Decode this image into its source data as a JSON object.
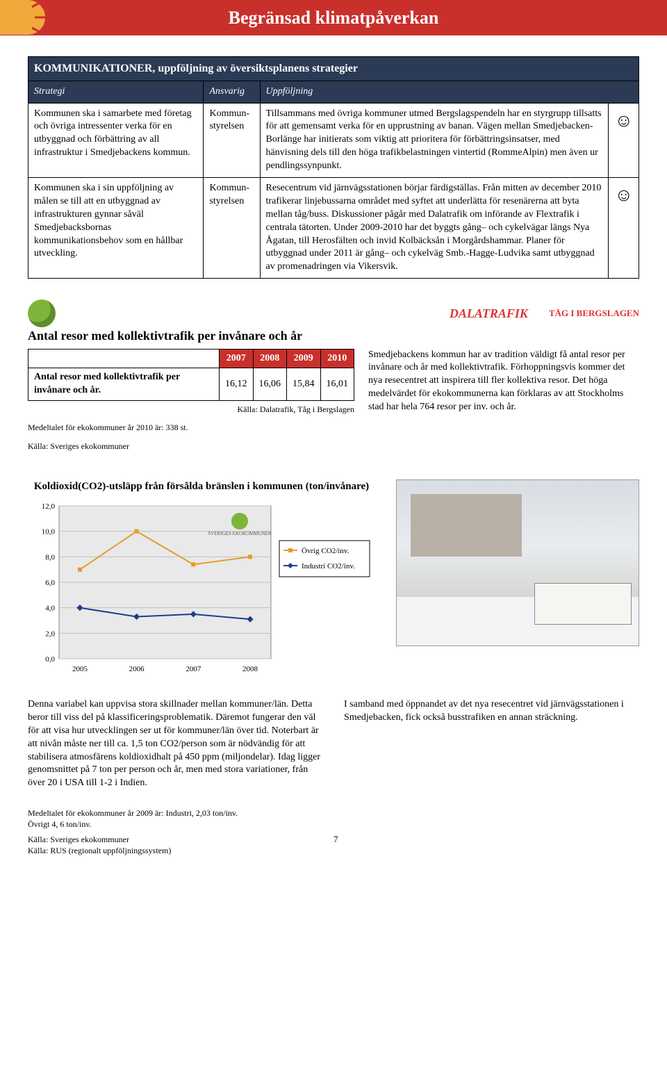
{
  "header": {
    "title": "Begränsad klimatpåverkan"
  },
  "strategies": {
    "main_title": "KOMMUNIKATIONER, uppföljning av översiktsplanens strategier",
    "col1": "Strategi",
    "col2": "Ansvarig",
    "col3": "Uppföljning",
    "rows": [
      {
        "strategy": "Kommunen ska i samarbete med företag och övriga intressenter verka för en utbyggnad och förbättring av all infrastruktur i Smedjebackens kommun.",
        "responsible": "Kommun-styrelsen",
        "followup": "Tillsammans med övriga kommuner utmed Bergslagspendeln har en styrgrupp tillsatts för att gemensamt verka för en upprustning av banan. Vägen mellan Smedjebacken-Borlänge har initierats som viktig att prioritera för förbättringsinsatser, med hänvisning dels till den höga trafikbelastningen vintertid (RommeAlpin) men även ur pendlingssynpunkt.",
        "smiley": "☺"
      },
      {
        "strategy": "Kommunen ska i sin uppföljning av målen se till att en utbyggnad av infrastrukturen gynnar såväl Smedjebacksbornas kommunikationsbehov som en hållbar utveckling.",
        "responsible": "Kommun-styrelsen",
        "followup": "Resecentrum vid järnvägsstationen börjar färdigställas. Från mitten av december 2010 trafikerar linjebussarna området med syftet att underlätta för resenärerna att byta mellan tåg/buss. Diskussioner pågår med Dalatrafik om införande av Flextrafik i centrala tätorten. Under 2009-2010 har det byggts gång– och cykelvägar längs Nya Ågatan, till Herosfälten och invid Kolbäcksån i Morgårdshammar. Planer för utbyggnad under 2011 är gång– och cykelväg Smb.-Hagge-Ludvika samt utbyggnad av promenadringen via Vikersvik.",
        "smiley": "☺"
      }
    ]
  },
  "kt_table": {
    "title": "Antal resor med kollektivtrafik per invånare och år",
    "years": [
      "2007",
      "2008",
      "2009",
      "2010"
    ],
    "row_label": "Antal resor med kollektivtrafik per invånare och år.",
    "values": [
      "16,12",
      "16,06",
      "15,84",
      "16,01"
    ],
    "source_right": "Källa: Dalatrafik, Tåg i Bergslagen",
    "note1": "Medeltalet för ekokommuner år 2010 är: 338 st.",
    "note2": "Källa: Sveriges ekokommuner"
  },
  "kt_right_text": "Smedjebackens kommun har av tradition väldigt få antal resor per invånare och år med kollektivtrafik. Förhoppningsvis kommer det nya resecentret att inspirera till fler kollektiva resor. Det höga medelvärdet för ekokommunerna kan förklaras av att Stockholms stad har hela 764 resor per inv. och år.",
  "logos": {
    "dalatrafik": "DALATRAFIK",
    "tib": "TÅG I BERGSLAGEN"
  },
  "co2_chart": {
    "title": "Koldioxid(CO2)-utsläpp från försålda bränslen i kommunen (ton/invånare)",
    "type": "line",
    "x": [
      2005,
      2006,
      2007,
      2008
    ],
    "x_labels": [
      "2005",
      "2006",
      "2007",
      "2008"
    ],
    "series": [
      {
        "name": "Övrig CO2/inv.",
        "color": "#e69b2b",
        "marker": "square",
        "values": [
          7.0,
          10.0,
          7.4,
          8.0
        ]
      },
      {
        "name": "Industri CO2/inv.",
        "color": "#1b3f8b",
        "marker": "diamond",
        "values": [
          4.0,
          3.3,
          3.5,
          3.1
        ]
      }
    ],
    "ylim": [
      0,
      12
    ],
    "ytick_step": 2,
    "yticks": [
      "0,0",
      "2,0",
      "4,0",
      "6,0",
      "8,0",
      "10,0",
      "12,0"
    ],
    "background_color": "#ffffff",
    "plot_background": "#e9e9e9",
    "grid_color": "#bfbfbf",
    "legend_border": "#000000",
    "line_width": 2,
    "marker_size": 6,
    "label_fontsize": 11
  },
  "bottom_left": "Denna variabel kan uppvisa stora skillnader mellan kommuner/län. Detta beror till viss del på  klassificeringsproblematik. Däremot fungerar den väl för att visa hur utvecklingen ser ut för kommuner/län över tid. Noterbart är att nivån måste ner till ca. 1,5 ton CO2/person som är nödvändig för att stabilisera atmosfärens koldioxidhalt på 450 ppm (miljondelar). Idag ligger genomsnittet på 7 ton per person och år, men med stora variationer, från över 20 i USA till 1-2 i Indien.",
  "bottom_right": "I samband med öppnandet av det nya resecentret vid järnvägsstationen i Smedjebacken, fick också busstrafiken en annan sträckning.",
  "footer": {
    "line1": "Medeltalet för ekokommuner år 2009 är: Industri, 2,03 ton/inv.",
    "line2": "Övrigt 4, 6 ton/inv.",
    "line3": "Källa: Sveriges ekokommuner",
    "line4": "Källa: RUS (regionalt uppföljningssystem)",
    "pagenum": "7"
  }
}
